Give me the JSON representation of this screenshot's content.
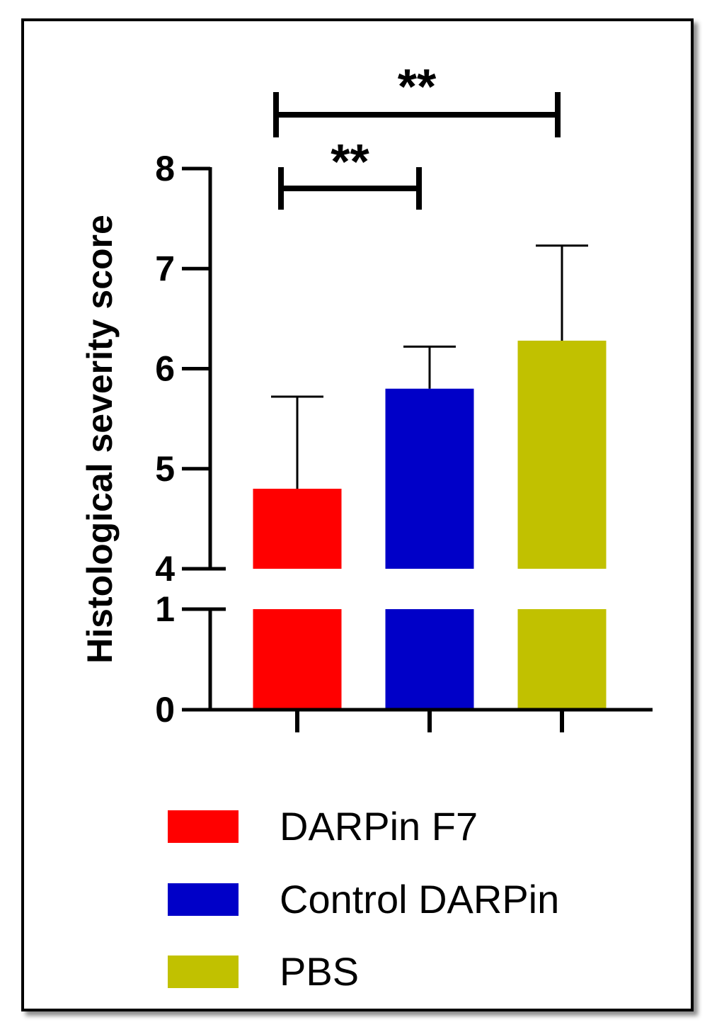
{
  "chart_data": {
    "type": "bar",
    "categories": [
      "DARPin F7",
      "Control DARPin",
      "PBS"
    ],
    "series": [
      {
        "values": [
          4.8,
          5.8,
          6.28
        ],
        "error": [
          0.92,
          0.42,
          0.95
        ]
      }
    ],
    "colors": [
      "#ff0000",
      "#0000c8",
      "#c1c100"
    ],
    "ylabel": "Histological severity score",
    "xlabel": "",
    "axis_break": {
      "lower": [
        0,
        1
      ],
      "upper": [
        4,
        8
      ]
    },
    "yticks_lower": [
      "0",
      "1"
    ],
    "yticks_upper": [
      "4",
      "5",
      "6",
      "7",
      "8"
    ],
    "significance": [
      {
        "from": "DARPin F7",
        "to": "Control DARPin",
        "label": "**"
      },
      {
        "from": "DARPin F7",
        "to": "PBS",
        "label": "**"
      }
    ],
    "legend": {
      "position": "bottom",
      "entries": [
        {
          "label": "DARPin F7",
          "color": "#ff0000"
        },
        {
          "label": "Control DARPin",
          "color": "#0000c8"
        },
        {
          "label": "PBS",
          "color": "#c1c100"
        }
      ]
    },
    "grid": false
  }
}
